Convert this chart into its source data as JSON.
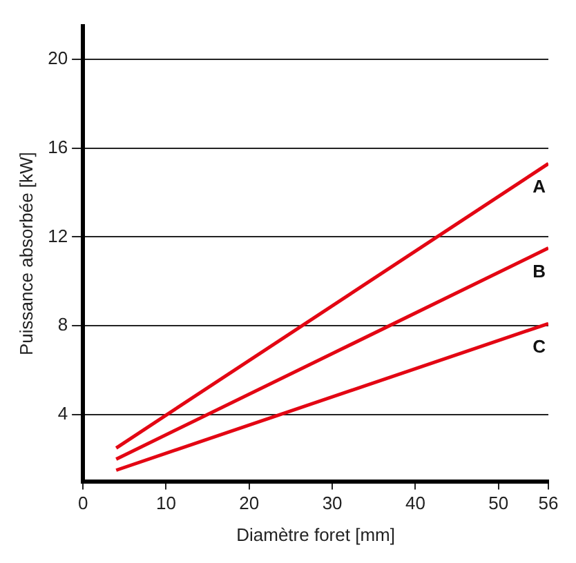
{
  "chart_data": {
    "type": "line",
    "xlabel": "Diamètre foret [mm]",
    "ylabel": "Puissance absorbée [kW]",
    "x": [
      4,
      56
    ],
    "series": [
      {
        "name": "A",
        "color": "#e30613",
        "values": [
          2.5,
          15.3
        ]
      },
      {
        "name": "B",
        "color": "#e30613",
        "values": [
          2.0,
          11.5
        ]
      },
      {
        "name": "C",
        "color": "#e30613",
        "values": [
          1.5,
          8.1
        ]
      }
    ],
    "xlim": [
      0,
      56
    ],
    "xticks": [
      0,
      10,
      20,
      30,
      40,
      50,
      56
    ],
    "ylim": [
      1,
      21.5
    ],
    "yticks": [
      4,
      8,
      12,
      16,
      20
    ],
    "grid": "y",
    "legend": false,
    "marker": "none",
    "line_style": "solid"
  }
}
